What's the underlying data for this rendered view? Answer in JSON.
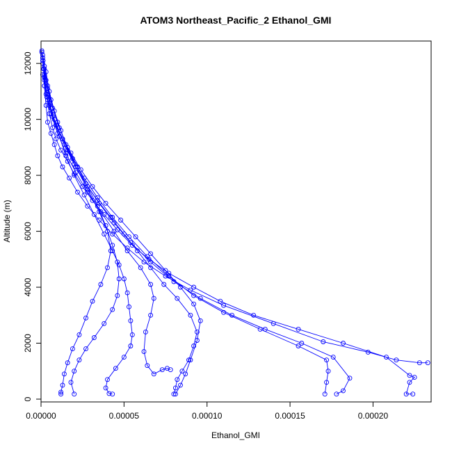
{
  "chart_data": {
    "type": "line",
    "title": "ATOM3 Northeast_Pacific_2 Ethanol_GMI",
    "xlabel": "Ethanol_GMI",
    "ylabel": "Altitude (m)",
    "xlim": [
      0,
      0.000235
    ],
    "ylim": [
      -100,
      12800
    ],
    "x_ticks": [
      0,
      5e-05,
      0.0001,
      0.00015,
      0.0002
    ],
    "x_tick_labels": [
      "0.00000",
      "0.00005",
      "0.00010",
      "0.00015",
      "0.00020"
    ],
    "y_ticks": [
      0,
      2000,
      4000,
      6000,
      8000,
      10000,
      12000
    ],
    "y_tick_labels": [
      "0",
      "2000",
      "4000",
      "6000",
      "8000",
      "10000",
      "12000"
    ],
    "grid": false,
    "marker": "open-circle",
    "color": "#0000ff",
    "series": [
      {
        "x": [
          5e-07,
          1e-06,
          1.5e-06,
          2e-06,
          3e-06,
          4e-06,
          6e-06,
          8e-06,
          1e-05,
          1.3e-05,
          1.7e-05,
          2.2e-05,
          2.8e-05,
          3.5e-05,
          4.3e-05,
          5.2e-05,
          6.2e-05,
          7.5e-05,
          9e-05,
          0.00011,
          0.00014,
          0.00017,
          0.000197,
          0.000214,
          0.000228,
          0.000233
        ],
        "y": [
          12450,
          12200,
          11800,
          11200,
          10500,
          9900,
          9500,
          9100,
          8700,
          8300,
          7900,
          7400,
          6900,
          6400,
          5900,
          5400,
          4900,
          4400,
          3900,
          3350,
          2700,
          2050,
          1680,
          1400,
          1300,
          1300
        ]
      },
      {
        "x": [
          5e-07,
          1.2e-06,
          2e-06,
          3.5e-06,
          5e-06,
          7e-06,
          9e-06,
          1.2e-05,
          1.6e-05,
          2e-05,
          2.5e-05,
          3.1e-05,
          3.8e-05,
          4.6e-05,
          5.5e-05,
          6.5e-05,
          7.7e-05,
          9.2e-05,
          0.000108,
          0.000128,
          0.000155,
          0.000182,
          0.000208,
          0.000222,
          0.000225,
          0.000222,
          0.00022,
          0.000224
        ],
        "y": [
          12400,
          12100,
          11500,
          10800,
          10200,
          9700,
          9300,
          8900,
          8500,
          8050,
          7600,
          7100,
          6600,
          6050,
          5500,
          5000,
          4500,
          4000,
          3500,
          3000,
          2500,
          2000,
          1500,
          850,
          780,
          600,
          180,
          180
        ]
      },
      {
        "x": [
          1e-06,
          2e-06,
          4e-06,
          6e-06,
          9e-06,
          1.3e-05,
          1.8e-05,
          2.4e-05,
          3.1e-05,
          3.9e-05,
          4.8e-05,
          5.7e-05,
          6.6e-05,
          7.5e-05,
          8.4e-05,
          9.2e-05,
          9.6e-05,
          9.4e-05,
          9e-05,
          8.7e-05,
          8.4e-05,
          8.1e-05
        ],
        "y": [
          12300,
          11900,
          11200,
          10400,
          9800,
          9300,
          8800,
          8200,
          7600,
          7000,
          6400,
          5800,
          5200,
          4600,
          4000,
          3400,
          2800,
          2100,
          1400,
          900,
          500,
          180
        ]
      },
      {
        "x": [
          1e-06,
          3e-06,
          5e-06,
          8e-06,
          1.2e-05,
          1.6e-05,
          2.1e-05,
          2.7e-05,
          3.4e-05,
          4.2e-05,
          5e-05,
          5.8e-05,
          6.6e-05,
          7.4e-05,
          8.2e-05,
          9e-05,
          9.4e-05,
          9.2e-05,
          8.9e-05,
          8.5e-05,
          8.2e-05,
          8.1e-05,
          8e-05
        ],
        "y": [
          12200,
          11700,
          11000,
          10300,
          9600,
          8900,
          8300,
          7700,
          7100,
          6500,
          5900,
          5300,
          4700,
          4100,
          3600,
          3000,
          2400,
          1900,
          1400,
          1000,
          700,
          400,
          180
        ]
      },
      {
        "x": [
          1e-06,
          2e-06,
          4e-06,
          7e-06,
          1.1e-05,
          1.5e-05,
          2e-05,
          2.6e-05,
          3.2e-05,
          3.8e-05,
          4.3e-05,
          4.7e-05,
          5e-05,
          5.2e-05,
          5.3e-05,
          5.4e-05,
          5.5e-05,
          5.4e-05,
          5e-05,
          4.5e-05,
          4e-05,
          3.9e-05,
          4.1e-05,
          4.3e-05
        ],
        "y": [
          12100,
          11600,
          10900,
          10100,
          9400,
          8700,
          8000,
          7300,
          6600,
          5900,
          5300,
          4800,
          4300,
          3800,
          3300,
          2800,
          2300,
          1900,
          1500,
          1100,
          700,
          400,
          200,
          180
        ]
      },
      {
        "x": [
          1e-06,
          3e-06,
          6e-06,
          1e-05,
          1.5e-05,
          2.1e-05,
          2.8e-05,
          3.5e-05,
          4e-05,
          4.2e-05,
          4e-05,
          3.6e-05,
          3.1e-05,
          2.7e-05,
          2.3e-05,
          1.9e-05,
          1.6e-05,
          1.4e-05,
          1.3e-05,
          1.2e-05,
          1.2e-05
        ],
        "y": [
          12000,
          11400,
          10700,
          9900,
          9100,
          8300,
          7500,
          6700,
          6000,
          5300,
          4700,
          4100,
          3500,
          2900,
          2300,
          1800,
          1300,
          900,
          500,
          250,
          180
        ]
      },
      {
        "x": [
          2e-06,
          4e-06,
          7e-06,
          1.1e-05,
          1.6e-05,
          2.2e-05,
          2.8e-05,
          3.4e-05,
          3.9e-05,
          4.3e-05,
          4.6e-05,
          4.7e-05,
          4.6e-05,
          4.3e-05,
          3.8e-05,
          3.2e-05,
          2.7e-05,
          2.3e-05,
          2e-05,
          1.8e-05,
          2e-05
        ],
        "y": [
          11800,
          11100,
          10400,
          9700,
          9000,
          8300,
          7600,
          6900,
          6200,
          5500,
          4900,
          4300,
          3700,
          3200,
          2700,
          2200,
          1800,
          1400,
          1000,
          600,
          180
        ]
      },
      {
        "x": [
          1e-06,
          3e-06,
          6e-06,
          1e-05,
          1.5e-05,
          2.1e-05,
          2.8e-05,
          3.6e-05,
          4.4e-05,
          5.2e-05,
          6e-05,
          6.6e-05,
          6.8e-05,
          6.6e-05,
          6.3e-05,
          6.2e-05,
          6.4e-05,
          6.8e-05,
          7.3e-05,
          7.6e-05,
          7.8e-05
        ],
        "y": [
          11600,
          10900,
          10200,
          9500,
          8800,
          8100,
          7400,
          6700,
          6000,
          5300,
          4700,
          4100,
          3600,
          3000,
          2400,
          1700,
          1200,
          900,
          1050,
          1100,
          1050
        ]
      },
      {
        "x": [
          2e-06,
          4e-06,
          8e-06,
          1.3e-05,
          1.9e-05,
          2.6e-05,
          3.4e-05,
          4.3e-05,
          5.3e-05,
          6.4e-05,
          7.7e-05,
          9.2e-05,
          0.00011,
          0.000132,
          0.000155,
          0.000172,
          0.000173,
          0.000172,
          0.000171
        ],
        "y": [
          11400,
          10700,
          10000,
          9300,
          8600,
          7900,
          7200,
          6500,
          5800,
          5100,
          4400,
          3700,
          3100,
          2500,
          1900,
          1400,
          1000,
          600,
          180
        ]
      },
      {
        "x": [
          2e-06,
          5e-06,
          9e-06,
          1.4e-05,
          2e-05,
          2.7e-05,
          3.5e-05,
          4.4e-05,
          5.4e-05,
          6.6e-05,
          8e-05,
          9.6e-05,
          0.000115,
          0.000135,
          0.000157,
          0.000176,
          0.000186,
          0.000182,
          0.000178
        ],
        "y": [
          11200,
          10500,
          9800,
          9100,
          8400,
          7700,
          7000,
          6300,
          5600,
          4900,
          4200,
          3600,
          3000,
          2500,
          2000,
          1500,
          750,
          300,
          180
        ]
      }
    ]
  }
}
